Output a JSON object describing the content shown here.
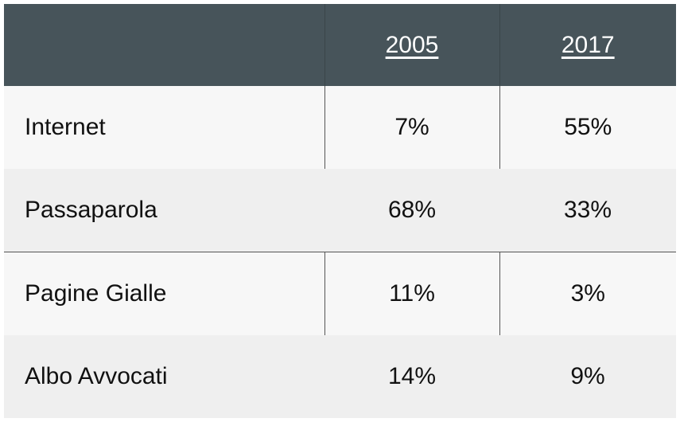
{
  "table": {
    "columns": [
      "2005",
      "2017"
    ],
    "rows": [
      [
        "Internet",
        "7%",
        "55%"
      ],
      [
        "Passaparola",
        "68%",
        "33%"
      ],
      [
        "Pagine Gialle",
        "11%",
        "3%"
      ],
      [
        "Albo Avvocati",
        "14%",
        "9%"
      ]
    ]
  }
}
